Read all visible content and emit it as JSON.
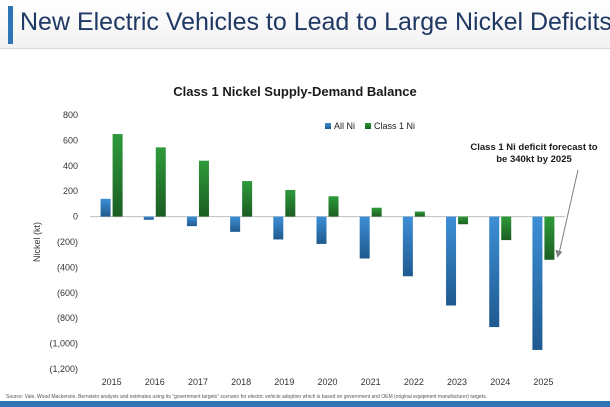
{
  "slide": {
    "title": "New Electric Vehicles to Lead to Large Nickel Deficits",
    "source": "Source: Vale, Wood Mackenzie, Bernstein analysis and estimates using its \"government targets\" scenario for electric vehicle adoption which is based on government and OEM (original equipment manufacturer) targets."
  },
  "colors": {
    "accent": "#2e75b6",
    "all_ni": "#2e75b6",
    "class1_ni": "#2e8b2e"
  },
  "chart_data": {
    "type": "bar",
    "title": "Class 1 Nickel Supply-Demand Balance",
    "xlabel": "",
    "ylabel": "Nickel (kt)",
    "categories": [
      "2015",
      "2016",
      "2017",
      "2018",
      "2019",
      "2020",
      "2021",
      "2022",
      "2023",
      "2024",
      "2025"
    ],
    "series": [
      {
        "name": "All Ni",
        "values": [
          140,
          -25,
          -75,
          -120,
          -180,
          -215,
          -330,
          -470,
          -700,
          -870,
          -1050
        ]
      },
      {
        "name": "Class 1 Ni",
        "values": [
          650,
          545,
          440,
          280,
          210,
          160,
          70,
          40,
          -60,
          -185,
          -340
        ]
      }
    ],
    "ylim": [
      -1200,
      800
    ],
    "yticks": [
      800,
      600,
      400,
      200,
      0,
      -200,
      -400,
      -600,
      -800,
      -1000,
      -1200
    ],
    "ytick_labels": [
      "800",
      "600",
      "400",
      "200",
      "0",
      "(200)",
      "(400)",
      "(600)",
      "(800)",
      "(1,000)",
      "(1,200)"
    ],
    "legend": "top-center",
    "grid": false,
    "annotation": {
      "lines": [
        "Class 1 Ni deficit forecast to",
        "be 340kt by 2025"
      ]
    }
  }
}
